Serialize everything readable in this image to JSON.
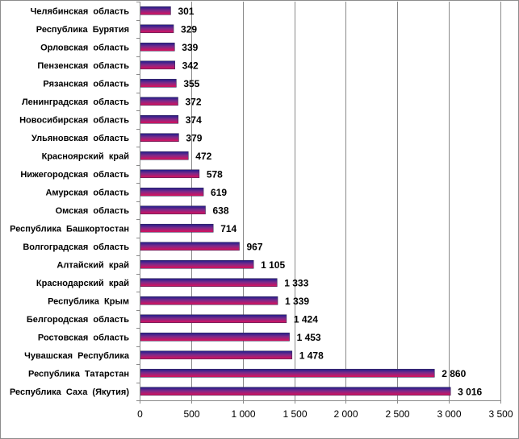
{
  "chart_data": {
    "type": "bar",
    "orientation": "horizontal",
    "title": "",
    "xlabel": "",
    "ylabel": "",
    "categories": [
      "Челябинская  область",
      "Республика  Бурятия",
      "Орловская  область",
      "Пензенская  область",
      "Рязанская  область",
      "Ленинградская  область",
      "Новосибирская  область",
      "Ульяновская  область",
      "Красноярский  край",
      "Нижегородская  область",
      "Амурская  область",
      "Омская  область",
      "Республика  Башкортостан",
      "Волгоградская  область",
      "Алтайский  край",
      "Краснодарский  край",
      "Республика  Крым",
      "Белгородская  область",
      "Ростовская  область",
      "Чувашская  Республика",
      "Республика  Татарстан",
      "Республика  Саха  (Якутия)"
    ],
    "values": [
      301,
      329,
      339,
      342,
      355,
      372,
      374,
      379,
      472,
      578,
      619,
      638,
      714,
      967,
      1105,
      1333,
      1339,
      1424,
      1453,
      1478,
      2860,
      3016
    ],
    "value_labels": [
      "301",
      "329",
      "339",
      "342",
      "355",
      "372",
      "374",
      "379",
      "472",
      "578",
      "619",
      "638",
      "714",
      "967",
      "1 105",
      "1 333",
      "1 339",
      "1 424",
      "1 453",
      "1 478",
      "2 860",
      "3 016"
    ],
    "xlim": [
      0,
      3500
    ],
    "x_ticks": [
      0,
      500,
      1000,
      1500,
      2000,
      2500,
      3000,
      3500
    ],
    "x_tick_labels": [
      "0",
      "500",
      "1 000",
      "1 500",
      "2 000",
      "2 500",
      "3 000",
      "3 500"
    ],
    "grid": "vertical",
    "legend": "none",
    "colors": {
      "bar_top": "#2b2b9a",
      "bar_bottom": "#cc1155",
      "grid": "#8a8a8a",
      "axis": "#8a8a8a"
    }
  }
}
